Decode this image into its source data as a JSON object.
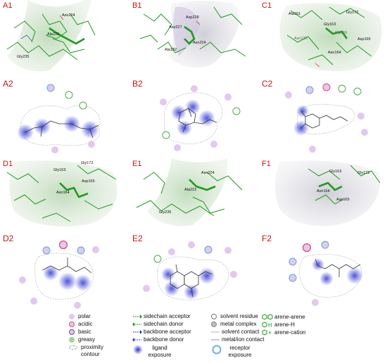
{
  "panels": {
    "A1": {
      "label": "A1",
      "residues": [
        "Asn224",
        "Ala223",
        "Gly235"
      ]
    },
    "B1": {
      "label": "B1",
      "residues": [
        "Asp228",
        "Asp227",
        "Asn224",
        "Ala182"
      ]
    },
    "C1": {
      "label": "C1",
      "residues": [
        "Ala161",
        "Gly172",
        "Gly163",
        "Asn136",
        "Gly166",
        "Asp165",
        "Asn164"
      ]
    },
    "D1": {
      "label": "D1",
      "residues": [
        "Gly163",
        "Gly172",
        "Asp165",
        "Asn164"
      ]
    },
    "E1": {
      "label": "E1",
      "residues": [
        "Asn224",
        "Ala223",
        "Gly235"
      ]
    },
    "F1": {
      "label": "F1",
      "residues": [
        "Gly163",
        "Gly172",
        "Asn164",
        "Asp165"
      ]
    },
    "A2": {
      "label": "A2"
    },
    "B2": {
      "label": "B2"
    },
    "C2": {
      "label": "C2"
    },
    "D2": {
      "label": "D2"
    },
    "E2": {
      "label": "E2"
    },
    "F2": {
      "label": "F2"
    }
  },
  "legend": {
    "col1": [
      "polar",
      "acidic",
      "basic",
      "greasy",
      "proximity contour"
    ],
    "col2": [
      "sidechain acceptor",
      "sidechain donor",
      "backbone acceptor",
      "backbone donor",
      "ligand exposure"
    ],
    "col3": [
      "solvent residue",
      "metal complex",
      "solvent contact",
      "metal/ion contact",
      "receptor exposure"
    ],
    "col4": [
      "arene-arene",
      "arene-H",
      "arene-cation"
    ]
  },
  "colors": {
    "polar": "#e2c8ef",
    "acidic": "#e54b6d",
    "basic": "#7a3fa0",
    "greasy": "#9ed88a",
    "exposure": "#2f37d6",
    "receptor": "#6fb2e4",
    "label": "#cc1111",
    "stick": "#1e9a1e",
    "surface": "#c9ddc6"
  }
}
